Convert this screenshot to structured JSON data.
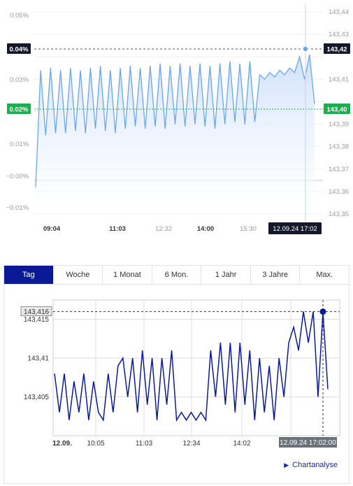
{
  "chart_data": [
    {
      "type": "area",
      "xlabel": "",
      "ylabel_left": "",
      "ylabel_right": "",
      "x_ticks": [
        "09:04",
        "11:03",
        "12:32",
        "14:00",
        "15:30"
      ],
      "x_ticks_bold": [
        "09:04",
        "11:03",
        "14:00"
      ],
      "left_ticks": [
        "0.05%",
        "0.04%",
        "0.03%",
        "0.02%",
        "0.01%",
        "−0.00%",
        "−0.01%"
      ],
      "right_ticks": [
        "143,44",
        "143,43",
        "143,42",
        "143,41",
        "143,40",
        "143,39",
        "143,38",
        "143,37",
        "143,36",
        "143,35"
      ],
      "ylim": [
        143.35,
        143.44
      ],
      "grid": true,
      "reference_line": 143.365,
      "highlight_left": [
        "0.04%",
        "0.02%"
      ],
      "highlight_right": [
        "143,42",
        "143,40"
      ],
      "crosshair_label": "12.09.24 17:02",
      "series": [
        {
          "levels": [
            143.362,
            143.414,
            143.385,
            143.415,
            143.386,
            143.414,
            143.386,
            143.415,
            143.387,
            143.414,
            143.386,
            143.415,
            143.388,
            143.416,
            143.387,
            143.414,
            143.386,
            143.415,
            143.388,
            143.416,
            143.389,
            143.415,
            143.388,
            143.416,
            143.389,
            143.417,
            143.388,
            143.416,
            143.39,
            143.417,
            143.389,
            143.416,
            143.39,
            143.417,
            143.389,
            143.416,
            143.388,
            143.417,
            143.39,
            143.418,
            143.391,
            143.417,
            143.39,
            143.418,
            143.391,
            143.412,
            143.41,
            143.413,
            143.411,
            143.414,
            143.412,
            143.415,
            143.413,
            143.42,
            143.41,
            143.421,
            143.399
          ],
          "color": "#6aa6ee",
          "fill": "#cfe1fb"
        }
      ]
    },
    {
      "type": "line",
      "xlabel": "",
      "ylabel": "",
      "x_ticks": [
        "12.09.",
        "10:05",
        "11:03",
        "12:34",
        "14:02"
      ],
      "y_ticks": [
        "143,415",
        "143,41",
        "143,405"
      ],
      "ylim": [
        143.4,
        143.4175
      ],
      "grid": true,
      "highlight_value_label": "143,416",
      "crosshair_label": "12.09.24 17:02:00",
      "series": [
        {
          "levels": [
            143.408,
            143.403,
            143.408,
            143.402,
            143.407,
            143.403,
            143.408,
            143.402,
            143.407,
            143.403,
            143.402,
            143.408,
            143.403,
            143.409,
            143.41,
            143.405,
            143.41,
            143.403,
            143.411,
            143.404,
            143.41,
            143.402,
            143.41,
            143.404,
            143.411,
            143.402,
            143.403,
            143.402,
            143.403,
            143.402,
            143.403,
            143.402,
            143.411,
            143.405,
            143.412,
            143.404,
            143.412,
            143.403,
            143.412,
            143.404,
            143.411,
            143.402,
            143.41,
            143.403,
            143.409,
            143.402,
            143.41,
            143.405,
            143.412,
            143.414,
            143.411,
            143.416,
            143.412,
            143.416,
            143.405,
            143.416,
            143.406
          ],
          "color": "#0a1a96"
        }
      ]
    }
  ],
  "tabs": [
    "Tag",
    "Woche",
    "1 Monat",
    "6 Mon.",
    "1 Jahr",
    "3 Jahre",
    "Max."
  ],
  "active_tab": "Tag",
  "chartanalyse_link": "Chartanalyse",
  "colors": {
    "top_line": "#6aa6ee",
    "top_fill": "#cfe1fb",
    "bottom_line": "#0a1a96",
    "highlight_green": "#1fad4f",
    "label_dark": "#15182a",
    "tab_active": "#0a1a96"
  }
}
